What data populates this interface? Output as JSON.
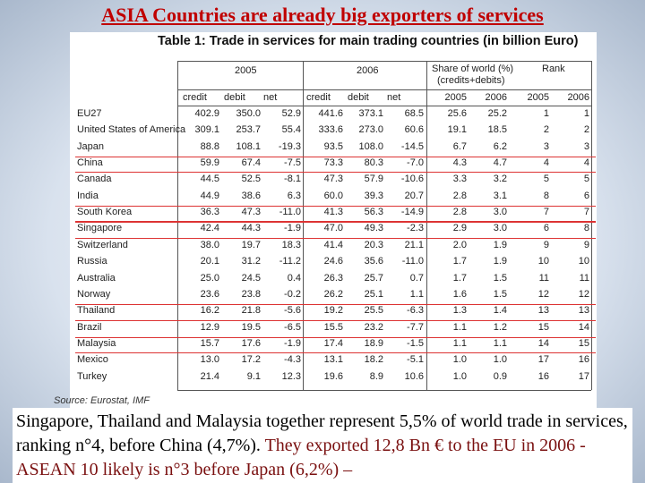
{
  "title": "ASIA Countries are already big exporters of services",
  "table": {
    "caption": "Table 1: Trade in services for main trading countries (in billion Euro)",
    "group_headers": [
      "2005",
      "2006",
      "Share of world (%)",
      "(credits+debits)",
      "Rank"
    ],
    "sub_headers": [
      "credit",
      "debit",
      "net",
      "credit",
      "debit",
      "net",
      "2005",
      "2006",
      "2005",
      "2006"
    ],
    "rows": [
      [
        "EU27",
        "402.9",
        "350.0",
        "52.9",
        "441.6",
        "373.1",
        "68.5",
        "25.6",
        "25.2",
        "1",
        "1"
      ],
      [
        "United States of America",
        "309.1",
        "253.7",
        "55.4",
        "333.6",
        "273.0",
        "60.6",
        "19.1",
        "18.5",
        "2",
        "2"
      ],
      [
        "Japan",
        "88.8",
        "108.1",
        "-19.3",
        "93.5",
        "108.0",
        "-14.5",
        "6.7",
        "6.2",
        "3",
        "3"
      ],
      [
        "China",
        "59.9",
        "67.4",
        "-7.5",
        "73.3",
        "80.3",
        "-7.0",
        "4.3",
        "4.7",
        "4",
        "4"
      ],
      [
        "Canada",
        "44.5",
        "52.5",
        "-8.1",
        "47.3",
        "57.9",
        "-10.6",
        "3.3",
        "3.2",
        "5",
        "5"
      ],
      [
        "India",
        "44.9",
        "38.6",
        "6.3",
        "60.0",
        "39.3",
        "20.7",
        "2.8",
        "3.1",
        "8",
        "6"
      ],
      [
        "South Korea",
        "36.3",
        "47.3",
        "-11.0",
        "41.3",
        "56.3",
        "-14.9",
        "2.8",
        "3.0",
        "7",
        "7"
      ],
      [
        "Singapore",
        "42.4",
        "44.3",
        "-1.9",
        "47.0",
        "49.3",
        "-2.3",
        "2.9",
        "3.0",
        "6",
        "8"
      ],
      [
        "Switzerland",
        "38.0",
        "19.7",
        "18.3",
        "41.4",
        "20.3",
        "21.1",
        "2.0",
        "1.9",
        "9",
        "9"
      ],
      [
        "Russia",
        "20.1",
        "31.2",
        "-11.2",
        "24.6",
        "35.6",
        "-11.0",
        "1.7",
        "1.9",
        "10",
        "10"
      ],
      [
        "Australia",
        "25.0",
        "24.5",
        "0.4",
        "26.3",
        "25.7",
        "0.7",
        "1.7",
        "1.5",
        "11",
        "11"
      ],
      [
        "Norway",
        "23.6",
        "23.8",
        "-0.2",
        "26.2",
        "25.1",
        "1.1",
        "1.6",
        "1.5",
        "12",
        "12"
      ],
      [
        "Thailand",
        "16.2",
        "21.8",
        "-5.6",
        "19.2",
        "25.5",
        "-6.3",
        "1.3",
        "1.4",
        "13",
        "13"
      ],
      [
        "Brazil",
        "12.9",
        "19.5",
        "-6.5",
        "15.5",
        "23.2",
        "-7.7",
        "1.1",
        "1.2",
        "15",
        "14"
      ],
      [
        "Malaysia",
        "15.7",
        "17.6",
        "-1.9",
        "17.4",
        "18.9",
        "-1.5",
        "1.1",
        "1.1",
        "14",
        "15"
      ],
      [
        "Mexico",
        "13.0",
        "17.2",
        "-4.3",
        "13.1",
        "18.2",
        "-5.1",
        "1.0",
        "1.0",
        "17",
        "16"
      ],
      [
        "Turkey",
        "21.4",
        "9.1",
        "12.3",
        "19.6",
        "8.9",
        "10.6",
        "1.0",
        "0.9",
        "16",
        "17"
      ]
    ],
    "source": "Source: Eurostat, IMF"
  },
  "footer": {
    "text1": "Singapore, Thailand and Malaysia together represent 5,5% of world trade in services, ranking n°4, before China (4,7%). ",
    "text2": "They exported 12,8 Bn € to the EU in 2006  - ASEAN 10 likely is n°3 before Japan  (6,2%) –"
  }
}
